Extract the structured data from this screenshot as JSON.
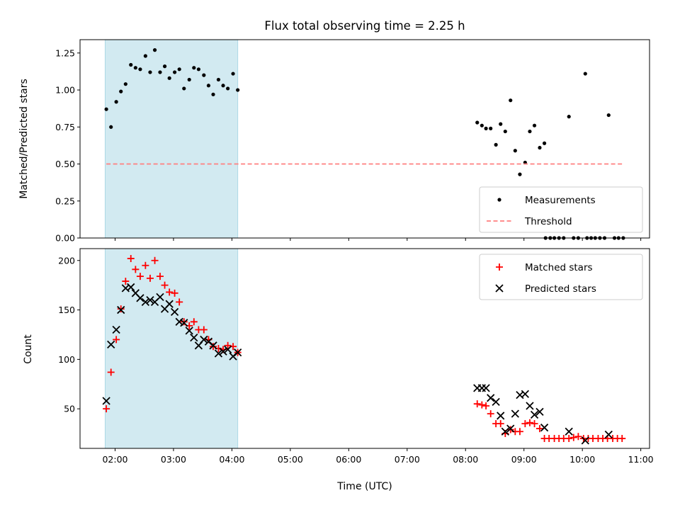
{
  "chart_data": [
    {
      "type": "scatter",
      "title": "Flux total observing time = 2.25 h",
      "ylabel": "Matched/Predicted stars",
      "xlabel": "",
      "x_units": "hours (UTC)",
      "xlim": [
        1.4,
        11.15
      ],
      "ylim": [
        0,
        1.34
      ],
      "yticks": [
        0.0,
        0.25,
        0.5,
        0.75,
        1.0,
        1.25
      ],
      "ytick_labels": [
        "0.00",
        "0.25",
        "0.50",
        "0.75",
        "1.00",
        "1.25"
      ],
      "shaded_span": [
        1.83,
        4.1
      ],
      "shaded_color": "#add8e6",
      "legend_position": "lower right",
      "series": [
        {
          "name": "Measurements",
          "marker": "dot",
          "color": "#000000",
          "x": [
            1.85,
            1.93,
            2.02,
            2.1,
            2.18,
            2.27,
            2.35,
            2.43,
            2.52,
            2.6,
            2.68,
            2.77,
            2.85,
            2.93,
            3.02,
            3.1,
            3.18,
            3.27,
            3.35,
            3.43,
            3.52,
            3.6,
            3.68,
            3.77,
            3.85,
            3.93,
            4.02,
            4.1,
            8.2,
            8.28,
            8.35,
            8.43,
            8.52,
            8.6,
            8.68,
            8.77,
            8.85,
            8.93,
            9.02,
            9.1,
            9.18,
            9.27,
            9.35,
            9.77,
            10.05,
            10.45,
            9.37,
            9.45,
            9.52,
            9.6,
            9.68,
            9.85,
            9.93,
            10.08,
            10.15,
            10.22,
            10.3,
            10.38,
            10.55,
            10.62,
            10.7
          ],
          "y": [
            0.87,
            0.75,
            0.92,
            0.99,
            1.04,
            1.17,
            1.15,
            1.14,
            1.23,
            1.12,
            1.27,
            1.12,
            1.16,
            1.08,
            1.12,
            1.14,
            1.01,
            1.07,
            1.15,
            1.14,
            1.1,
            1.03,
            0.97,
            1.07,
            1.03,
            1.01,
            1.11,
            1.0,
            0.78,
            0.76,
            0.74,
            0.74,
            0.63,
            0.77,
            0.72,
            0.93,
            0.59,
            0.43,
            0.51,
            0.72,
            0.76,
            0.61,
            0.64,
            0.82,
            1.11,
            0.83,
            0.0,
            0.0,
            0.0,
            0.0,
            0.0,
            0.0,
            0.0,
            0.0,
            0.0,
            0.0,
            0.0,
            0.0,
            0.0,
            0.0,
            0.0
          ]
        },
        {
          "name": "Threshold",
          "style": "dashed",
          "color": "#ff7f7f",
          "x": [
            1.85,
            10.7
          ],
          "y": [
            0.5,
            0.5
          ]
        }
      ]
    },
    {
      "type": "scatter",
      "title": "",
      "ylabel": "Count",
      "xlabel": "Time (UTC)",
      "x_units": "hours (UTC)",
      "xlim": [
        1.4,
        11.15
      ],
      "ylim": [
        10,
        212
      ],
      "yticks": [
        50,
        100,
        150,
        200
      ],
      "ytick_labels": [
        "50",
        "100",
        "150",
        "200"
      ],
      "xticks": [
        2,
        3,
        4,
        5,
        6,
        7,
        8,
        9,
        10,
        11
      ],
      "xtick_labels": [
        "02:00",
        "03:00",
        "04:00",
        "05:00",
        "06:00",
        "07:00",
        "08:00",
        "09:00",
        "10:00",
        "11:00"
      ],
      "shaded_span": [
        1.83,
        4.1
      ],
      "shaded_color": "#add8e6",
      "legend_position": "upper right",
      "series": [
        {
          "name": "Matched stars",
          "marker": "plus",
          "color": "#ff0000",
          "x": [
            1.85,
            1.93,
            2.02,
            2.1,
            2.18,
            2.27,
            2.35,
            2.43,
            2.52,
            2.6,
            2.68,
            2.77,
            2.85,
            2.93,
            3.02,
            3.1,
            3.18,
            3.27,
            3.35,
            3.43,
            3.52,
            3.6,
            3.68,
            3.77,
            3.85,
            3.93,
            4.02,
            4.1,
            8.2,
            8.28,
            8.35,
            8.43,
            8.52,
            8.6,
            8.68,
            8.77,
            8.85,
            8.93,
            9.02,
            9.1,
            9.18,
            9.27,
            9.35,
            9.43,
            9.52,
            9.6,
            9.68,
            9.77,
            9.85,
            9.93,
            10.02,
            10.1,
            10.18,
            10.27,
            10.35,
            10.43,
            10.52,
            10.6,
            10.68
          ],
          "y": [
            50,
            87,
            120,
            151,
            179,
            202,
            191,
            184,
            195,
            182,
            200,
            184,
            175,
            168,
            167,
            158,
            138,
            134,
            138,
            130,
            130,
            120,
            113,
            111,
            110,
            114,
            113,
            107,
            55,
            54,
            53,
            45,
            35,
            35,
            25,
            29,
            27,
            27,
            35,
            36,
            35,
            30,
            20,
            20,
            20,
            20,
            20,
            20,
            21,
            22,
            20,
            20,
            20,
            20,
            20,
            20,
            20,
            20,
            20
          ]
        },
        {
          "name": "Predicted stars",
          "marker": "x",
          "color": "#000000",
          "x": [
            1.85,
            1.93,
            2.02,
            2.1,
            2.18,
            2.27,
            2.35,
            2.43,
            2.52,
            2.6,
            2.68,
            2.77,
            2.85,
            2.93,
            3.02,
            3.1,
            3.18,
            3.27,
            3.35,
            3.43,
            3.52,
            3.6,
            3.68,
            3.77,
            3.85,
            3.93,
            4.02,
            4.1,
            8.2,
            8.28,
            8.35,
            8.43,
            8.52,
            8.6,
            8.68,
            8.77,
            8.85,
            8.93,
            9.02,
            9.1,
            9.18,
            9.27,
            9.35,
            9.77,
            10.05,
            10.45
          ],
          "y": [
            58,
            115,
            130,
            150,
            172,
            173,
            167,
            162,
            158,
            160,
            158,
            163,
            151,
            156,
            148,
            138,
            137,
            129,
            122,
            114,
            120,
            118,
            114,
            106,
            108,
            110,
            103,
            107,
            71,
            71,
            71,
            61,
            57,
            43,
            27,
            30,
            45,
            64,
            65,
            53,
            44,
            47,
            31,
            27,
            18,
            24
          ]
        }
      ]
    }
  ]
}
